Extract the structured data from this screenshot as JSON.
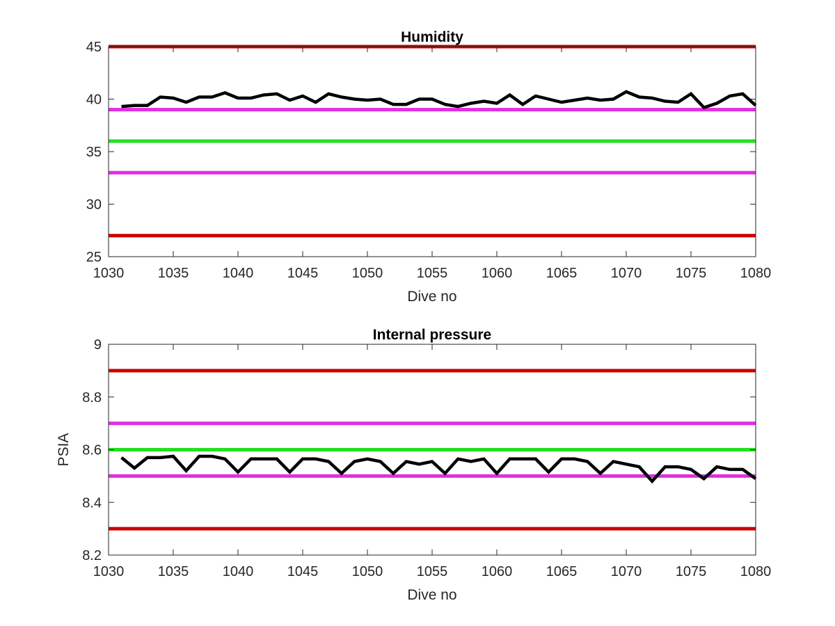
{
  "chart_data": [
    {
      "type": "line",
      "title": "Humidity",
      "xlabel": "Dive no",
      "ylabel": "",
      "xlim": [
        1030,
        1080
      ],
      "ylim": [
        25,
        45
      ],
      "xticks": [
        "1030",
        "1035",
        "1040",
        "1045",
        "1050",
        "1055",
        "1060",
        "1065",
        "1070",
        "1075",
        "1080"
      ],
      "yticks": [
        "25",
        "30",
        "35",
        "40",
        "45"
      ],
      "grid": false,
      "reference_lines": [
        {
          "y": 45,
          "color": "#cc0000"
        },
        {
          "y": 39,
          "color": "#e22ee2"
        },
        {
          "y": 36,
          "color": "#22e022"
        },
        {
          "y": 33,
          "color": "#e22ee2"
        },
        {
          "y": 27,
          "color": "#cc0000"
        }
      ],
      "series": [
        {
          "color": "#000000",
          "x": [
            1031,
            1032,
            1033,
            1034,
            1035,
            1036,
            1037,
            1038,
            1039,
            1040,
            1041,
            1042,
            1043,
            1044,
            1045,
            1046,
            1047,
            1048,
            1049,
            1050,
            1051,
            1052,
            1053,
            1054,
            1055,
            1056,
            1057,
            1058,
            1059,
            1060,
            1061,
            1062,
            1063,
            1064,
            1065,
            1066,
            1067,
            1068,
            1069,
            1070,
            1071,
            1072,
            1073,
            1074,
            1075,
            1076,
            1077,
            1078,
            1079,
            1080
          ],
          "y": [
            39.3,
            39.4,
            39.4,
            40.2,
            40.1,
            39.7,
            40.2,
            40.2,
            40.6,
            40.1,
            40.1,
            40.4,
            40.5,
            39.9,
            40.3,
            39.7,
            40.5,
            40.2,
            40.0,
            39.9,
            40.0,
            39.5,
            39.5,
            40.0,
            40.0,
            39.5,
            39.3,
            39.6,
            39.8,
            39.6,
            40.4,
            39.5,
            40.3,
            40.0,
            39.7,
            39.9,
            40.1,
            39.9,
            40.0,
            40.7,
            40.2,
            40.1,
            39.8,
            39.7,
            40.5,
            39.2,
            39.6,
            40.3,
            40.5,
            39.4
          ]
        }
      ]
    },
    {
      "type": "line",
      "title": "Internal pressure",
      "xlabel": "Dive no",
      "ylabel": "PSIA",
      "xlim": [
        1030,
        1080
      ],
      "ylim": [
        8.2,
        9.0
      ],
      "xticks": [
        "1030",
        "1035",
        "1040",
        "1045",
        "1050",
        "1055",
        "1060",
        "1065",
        "1070",
        "1075",
        "1080"
      ],
      "yticks": [
        "8.2",
        "8.4",
        "8.6",
        "8.8",
        "9"
      ],
      "grid": false,
      "reference_lines": [
        {
          "y": 8.9,
          "color": "#cc0000"
        },
        {
          "y": 8.7,
          "color": "#e22ee2"
        },
        {
          "y": 8.6,
          "color": "#22e022"
        },
        {
          "y": 8.5,
          "color": "#e22ee2"
        },
        {
          "y": 8.3,
          "color": "#cc0000"
        }
      ],
      "series": [
        {
          "color": "#000000",
          "x": [
            1031,
            1032,
            1033,
            1034,
            1035,
            1036,
            1037,
            1038,
            1039,
            1040,
            1041,
            1042,
            1043,
            1044,
            1045,
            1046,
            1047,
            1048,
            1049,
            1050,
            1051,
            1052,
            1053,
            1054,
            1055,
            1056,
            1057,
            1058,
            1059,
            1060,
            1061,
            1062,
            1063,
            1064,
            1065,
            1066,
            1067,
            1068,
            1069,
            1070,
            1071,
            1072,
            1073,
            1074,
            1075,
            1076,
            1077,
            1078,
            1079,
            1080
          ],
          "y": [
            8.57,
            8.53,
            8.57,
            8.57,
            8.575,
            8.52,
            8.575,
            8.575,
            8.565,
            8.515,
            8.565,
            8.565,
            8.565,
            8.515,
            8.565,
            8.565,
            8.555,
            8.51,
            8.555,
            8.565,
            8.555,
            8.51,
            8.555,
            8.545,
            8.555,
            8.51,
            8.565,
            8.555,
            8.565,
            8.51,
            8.565,
            8.565,
            8.565,
            8.515,
            8.565,
            8.565,
            8.555,
            8.51,
            8.555,
            8.545,
            8.535,
            8.48,
            8.535,
            8.535,
            8.525,
            8.49,
            8.535,
            8.525,
            8.525,
            8.49
          ]
        }
      ]
    }
  ]
}
